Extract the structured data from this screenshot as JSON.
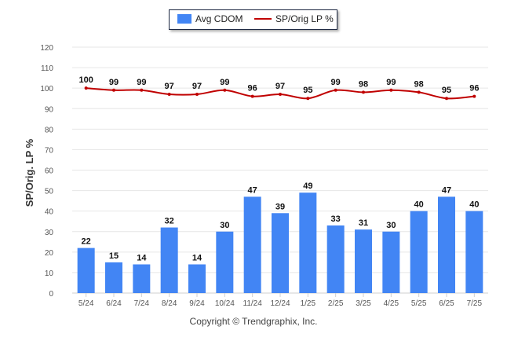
{
  "legend": {
    "bar_label": "Avg CDOM",
    "line_label": "SP/Orig LP %"
  },
  "footer": {
    "copyright": "Copyright © Trendgraphix, Inc."
  },
  "colors": {
    "bar": "#4285f4",
    "line": "#c00000",
    "grid": "#e6e6e6",
    "axis_text": "#555555"
  },
  "chart_data": {
    "type": "bar",
    "title": "",
    "xlabel": "",
    "ylabel": "SP/Orig. LP %",
    "ylim": [
      0,
      120
    ],
    "yticks": [
      0,
      10,
      20,
      30,
      40,
      50,
      60,
      70,
      80,
      90,
      100,
      110,
      120
    ],
    "grid": true,
    "legend_position": "top-center",
    "categories": [
      "5/24",
      "6/24",
      "7/24",
      "8/24",
      "9/24",
      "10/24",
      "11/24",
      "12/24",
      "1/25",
      "2/25",
      "3/25",
      "4/25",
      "5/25",
      "6/25",
      "7/25"
    ],
    "series": [
      {
        "name": "Avg CDOM",
        "type": "bar",
        "values": [
          22,
          15,
          14,
          32,
          14,
          30,
          47,
          39,
          49,
          33,
          31,
          30,
          40,
          47,
          40
        ]
      },
      {
        "name": "SP/Orig LP %",
        "type": "line",
        "values": [
          100,
          99,
          99,
          97,
          97,
          99,
          96,
          97,
          95,
          99,
          98,
          99,
          98,
          95,
          96
        ]
      }
    ]
  }
}
